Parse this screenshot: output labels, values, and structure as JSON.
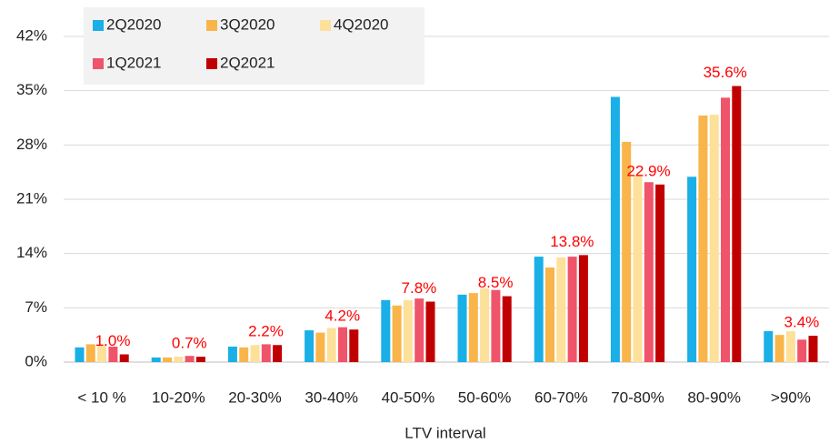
{
  "chart_data": {
    "type": "bar",
    "x_label": "LTV interval",
    "categories": [
      "< 10 %",
      "10-20%",
      "20-30%",
      "30-40%",
      "40-50%",
      "50-60%",
      "60-70%",
      "70-80%",
      "80-90%",
      ">90%"
    ],
    "series": [
      {
        "name": "2Q2020",
        "color": "#1aafe6",
        "values": [
          1.9,
          0.6,
          2.0,
          4.1,
          8.0,
          8.7,
          13.6,
          34.2,
          23.9,
          4.0
        ]
      },
      {
        "name": "3Q2020",
        "color": "#f9b54a",
        "values": [
          2.3,
          0.6,
          1.9,
          3.8,
          7.3,
          8.9,
          12.2,
          28.4,
          31.8,
          3.5
        ]
      },
      {
        "name": "4Q2020",
        "color": "#fde09a",
        "values": [
          2.3,
          0.7,
          2.2,
          4.4,
          8.0,
          9.5,
          13.5,
          24.2,
          31.9,
          4.0
        ]
      },
      {
        "name": "1Q2021",
        "color": "#f0546a",
        "values": [
          2.0,
          0.8,
          2.3,
          4.5,
          8.2,
          9.3,
          13.6,
          23.2,
          34.1,
          2.9
        ]
      },
      {
        "name": "2Q2021",
        "color": "#c00000",
        "values": [
          1.0,
          0.7,
          2.2,
          4.2,
          7.8,
          8.5,
          13.8,
          22.9,
          35.6,
          3.4
        ],
        "value_labels": [
          "1.0%",
          "0.7%",
          "2.2%",
          "4.2%",
          "7.8%",
          "8.5%",
          "13.8%",
          "22.9%",
          "35.6%",
          "3.4%"
        ]
      }
    ],
    "value_label_color": "#ff0000",
    "ylim": [
      0,
      42
    ],
    "yticks": [
      {
        "value": 0,
        "label": "0%"
      },
      {
        "value": 7,
        "label": "7%"
      },
      {
        "value": 14,
        "label": "14%"
      },
      {
        "value": 21,
        "label": "21%"
      },
      {
        "value": 28,
        "label": "28%"
      },
      {
        "value": 35,
        "label": "35%"
      },
      {
        "value": 42,
        "label": "42%"
      }
    ],
    "grid": true,
    "legend": "upper-left"
  }
}
